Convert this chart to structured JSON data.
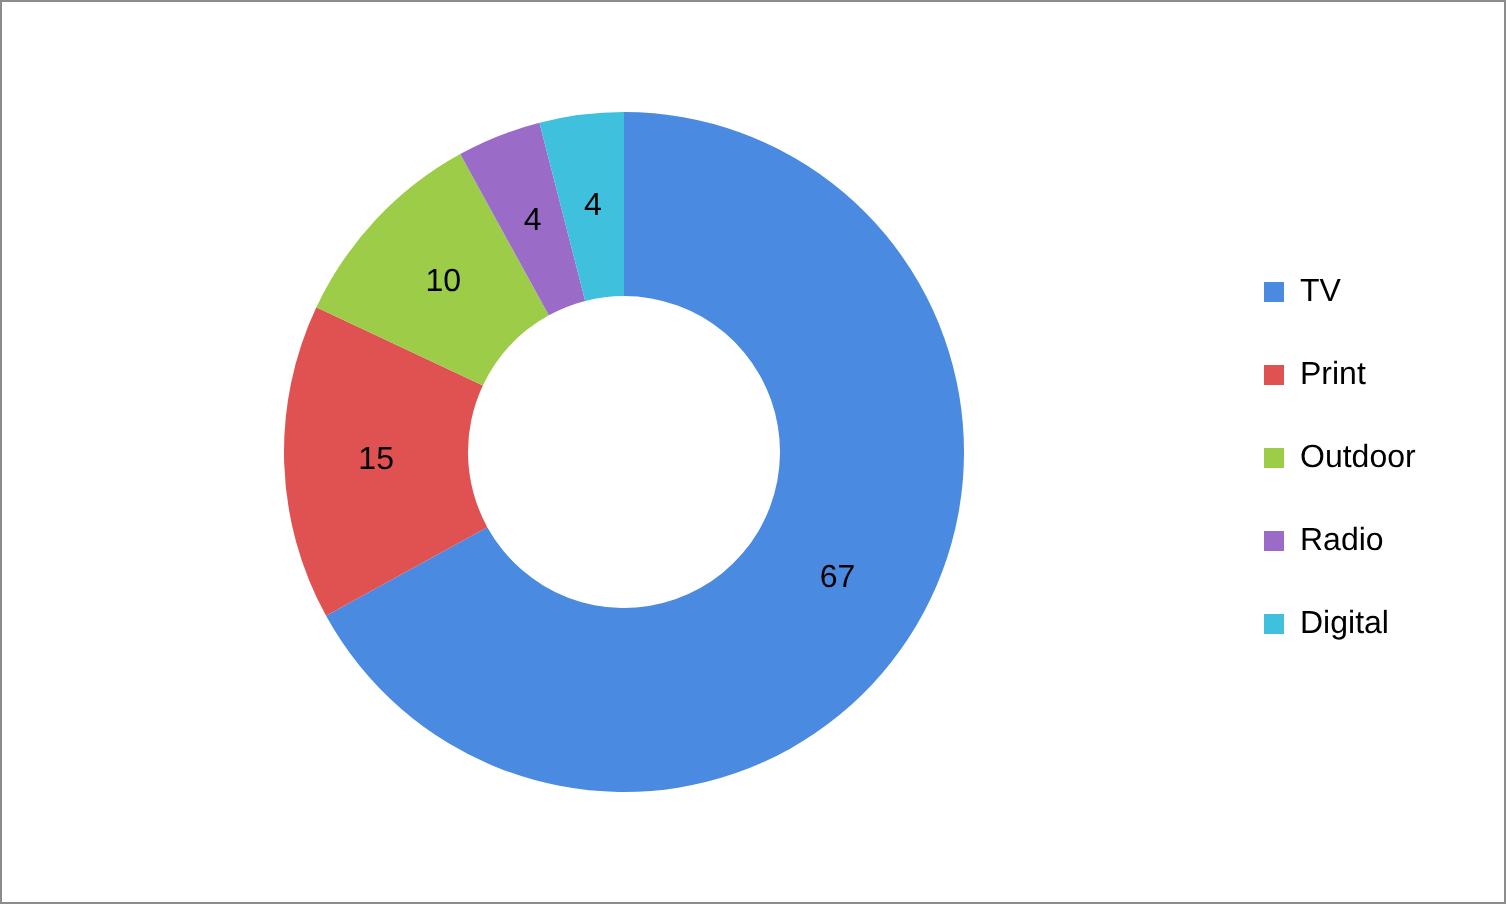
{
  "chart_data": {
    "type": "donut",
    "categories": [
      "TV",
      "Print",
      "Outdoor",
      "Radio",
      "Digital"
    ],
    "values": [
      67,
      15,
      10,
      4,
      4
    ],
    "colors": [
      "#4a8ae0",
      "#e05252",
      "#9ccc48",
      "#9a6cc8",
      "#3fc0dc"
    ],
    "data_labels": true,
    "legend": "right"
  }
}
